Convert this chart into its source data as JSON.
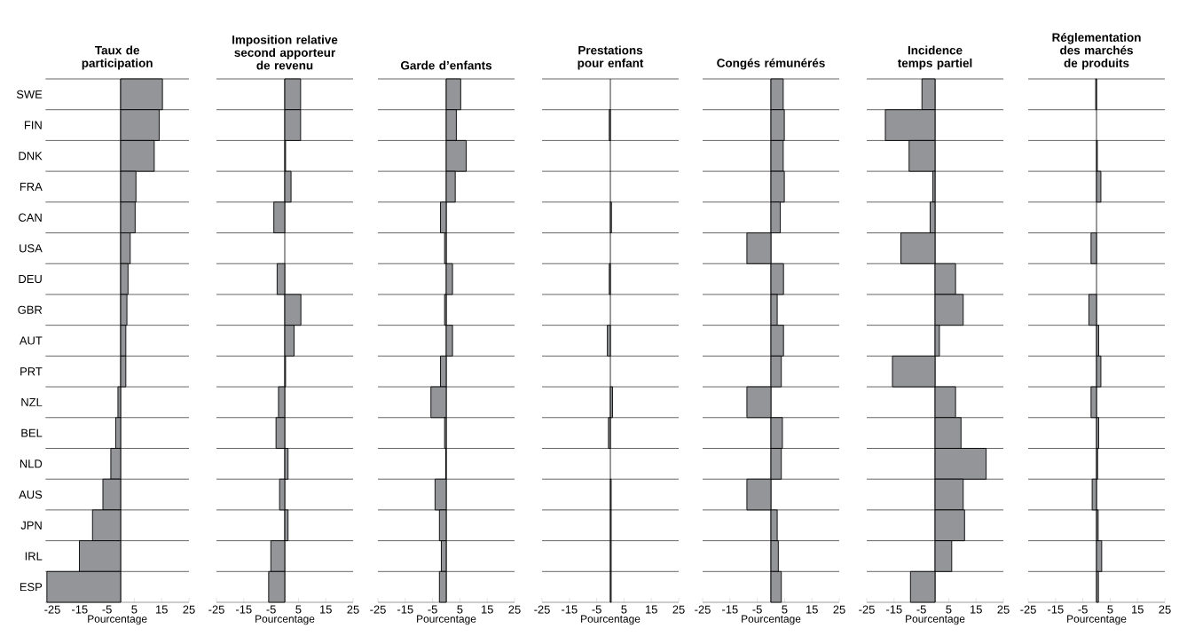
{
  "chart_data": [
    {
      "type": "bar",
      "orientation": "horizontal",
      "title": "Taux de participation",
      "xlabel": "Pourcentage",
      "categories": [
        "SWE",
        "FIN",
        "DNK",
        "FRA",
        "CAN",
        "USA",
        "DEU",
        "GBR",
        "AUT",
        "PRT",
        "NZL",
        "BEL",
        "NLD",
        "AUS",
        "JPN",
        "IRL",
        "ESP"
      ],
      "values": [
        15.3,
        14.1,
        12.3,
        5.6,
        5.3,
        3.5,
        2.7,
        2.3,
        1.9,
        1.9,
        -1.0,
        -1.8,
        -3.6,
        -6.5,
        -10.3,
        -15.1,
        -27.0
      ],
      "color": "#939598",
      "xlim": [
        -27.5,
        25
      ],
      "xticks": [
        -25,
        -15,
        -5,
        5,
        15,
        25
      ],
      "grid": "y"
    },
    {
      "type": "bar",
      "orientation": "horizontal",
      "title": "Imposition relative second apporteur de revenu",
      "xlabel": "Pourcentage",
      "categories": [
        null,
        null,
        null,
        null,
        null,
        null,
        null,
        null,
        null,
        null,
        null,
        null,
        null,
        null,
        null,
        null,
        null
      ],
      "values": [
        5.8,
        5.8,
        0.3,
        2.3,
        -4.0,
        0,
        -2.8,
        5.9,
        3.4,
        0.3,
        -2.3,
        -3.2,
        1.2,
        -1.9,
        1.2,
        -5.1,
        -5.9
      ],
      "color": "#939598",
      "xlim": [
        -25,
        25
      ],
      "xticks": [
        -25,
        -15,
        -5,
        5,
        15,
        25
      ],
      "grid": "y",
      "tick_labels": "x"
    },
    {
      "type": "bar",
      "orientation": "horizontal",
      "title": "Garde d’enfants",
      "xlabel": "Pourcentage",
      "categories": [
        null,
        null,
        null,
        null,
        null,
        null,
        null,
        null,
        null,
        null,
        null,
        null,
        null,
        null,
        null,
        null,
        null
      ],
      "values": [
        5.3,
        3.7,
        7.3,
        3.3,
        -2.1,
        -0.6,
        2.3,
        -0.6,
        2.3,
        -2.1,
        -5.6,
        -0.6,
        -0.2,
        -4.1,
        -2.5,
        -1.8,
        -2.5
      ],
      "color": "#939598",
      "xlim": [
        -25,
        25
      ],
      "xticks": [
        -25,
        -15,
        -5,
        5,
        15,
        25
      ],
      "grid": "y",
      "tick_labels": "x"
    },
    {
      "type": "bar",
      "orientation": "horizontal",
      "title": "Prestations pour enfant",
      "xlabel": "Pourcentage",
      "categories": [
        null,
        null,
        null,
        null,
        null,
        null,
        null,
        null,
        null,
        null,
        null,
        null,
        null,
        null,
        null,
        null,
        null
      ],
      "values": [
        0,
        -0.4,
        0,
        0,
        0.4,
        0,
        -0.4,
        0,
        -1.1,
        0,
        0.8,
        -0.7,
        0,
        0.3,
        0.3,
        0.3,
        0.3
      ],
      "color": "#939598",
      "xlim": [
        -25,
        25
      ],
      "xticks": [
        -25,
        -15,
        -5,
        5,
        15,
        25
      ],
      "grid": "y",
      "tick_labels": "x"
    },
    {
      "type": "bar",
      "orientation": "horizontal",
      "title": "Congés rémunérés",
      "xlabel": "Pourcentage",
      "categories": [
        null,
        null,
        null,
        null,
        null,
        null,
        null,
        null,
        null,
        null,
        null,
        null,
        null,
        null,
        null,
        null,
        null
      ],
      "values": [
        4.5,
        4.9,
        4.5,
        4.9,
        3.4,
        -8.8,
        4.6,
        2.3,
        4.6,
        3.8,
        -8.8,
        4.2,
        3.8,
        -8.8,
        2.3,
        2.7,
        3.8
      ],
      "color": "#939598",
      "xlim": [
        -25,
        25
      ],
      "xticks": [
        -25,
        -15,
        -5,
        5,
        15,
        25
      ],
      "grid": "y",
      "tick_labels": "x"
    },
    {
      "type": "bar",
      "orientation": "horizontal",
      "title": "Incidence temps partiel",
      "xlabel": "Pourcentage",
      "categories": [
        null,
        null,
        null,
        null,
        null,
        null,
        null,
        null,
        null,
        null,
        null,
        null,
        null,
        null,
        null,
        null,
        null
      ],
      "values": [
        -4.8,
        -18.2,
        -9.5,
        -0.8,
        -1.8,
        -12.5,
        7.5,
        10.3,
        1.6,
        -15.6,
        7.5,
        9.5,
        18.7,
        10.3,
        10.8,
        6.1,
        -9.0
      ],
      "color": "#939598",
      "xlim": [
        -25,
        25
      ],
      "xticks": [
        -25,
        -15,
        -5,
        5,
        15,
        25
      ],
      "grid": "y",
      "tick_labels": "x"
    },
    {
      "type": "bar",
      "orientation": "horizontal",
      "title": "Réglementation des marchés de produits",
      "xlabel": "Pourcentage",
      "categories": [
        null,
        null,
        null,
        null,
        null,
        null,
        null,
        null,
        null,
        null,
        null,
        null,
        null,
        null,
        null,
        null,
        null
      ],
      "values": [
        -0.3,
        0,
        0.3,
        1.6,
        0,
        -2.0,
        0,
        -2.8,
        0.8,
        1.6,
        -2.0,
        0.8,
        0.4,
        -1.6,
        0.6,
        1.9,
        0.7
      ],
      "color": "#939598",
      "xlim": [
        -25,
        25
      ],
      "xticks": [
        -25,
        -15,
        -5,
        5,
        15,
        25
      ],
      "grid": "y",
      "tick_labels": "x"
    }
  ]
}
